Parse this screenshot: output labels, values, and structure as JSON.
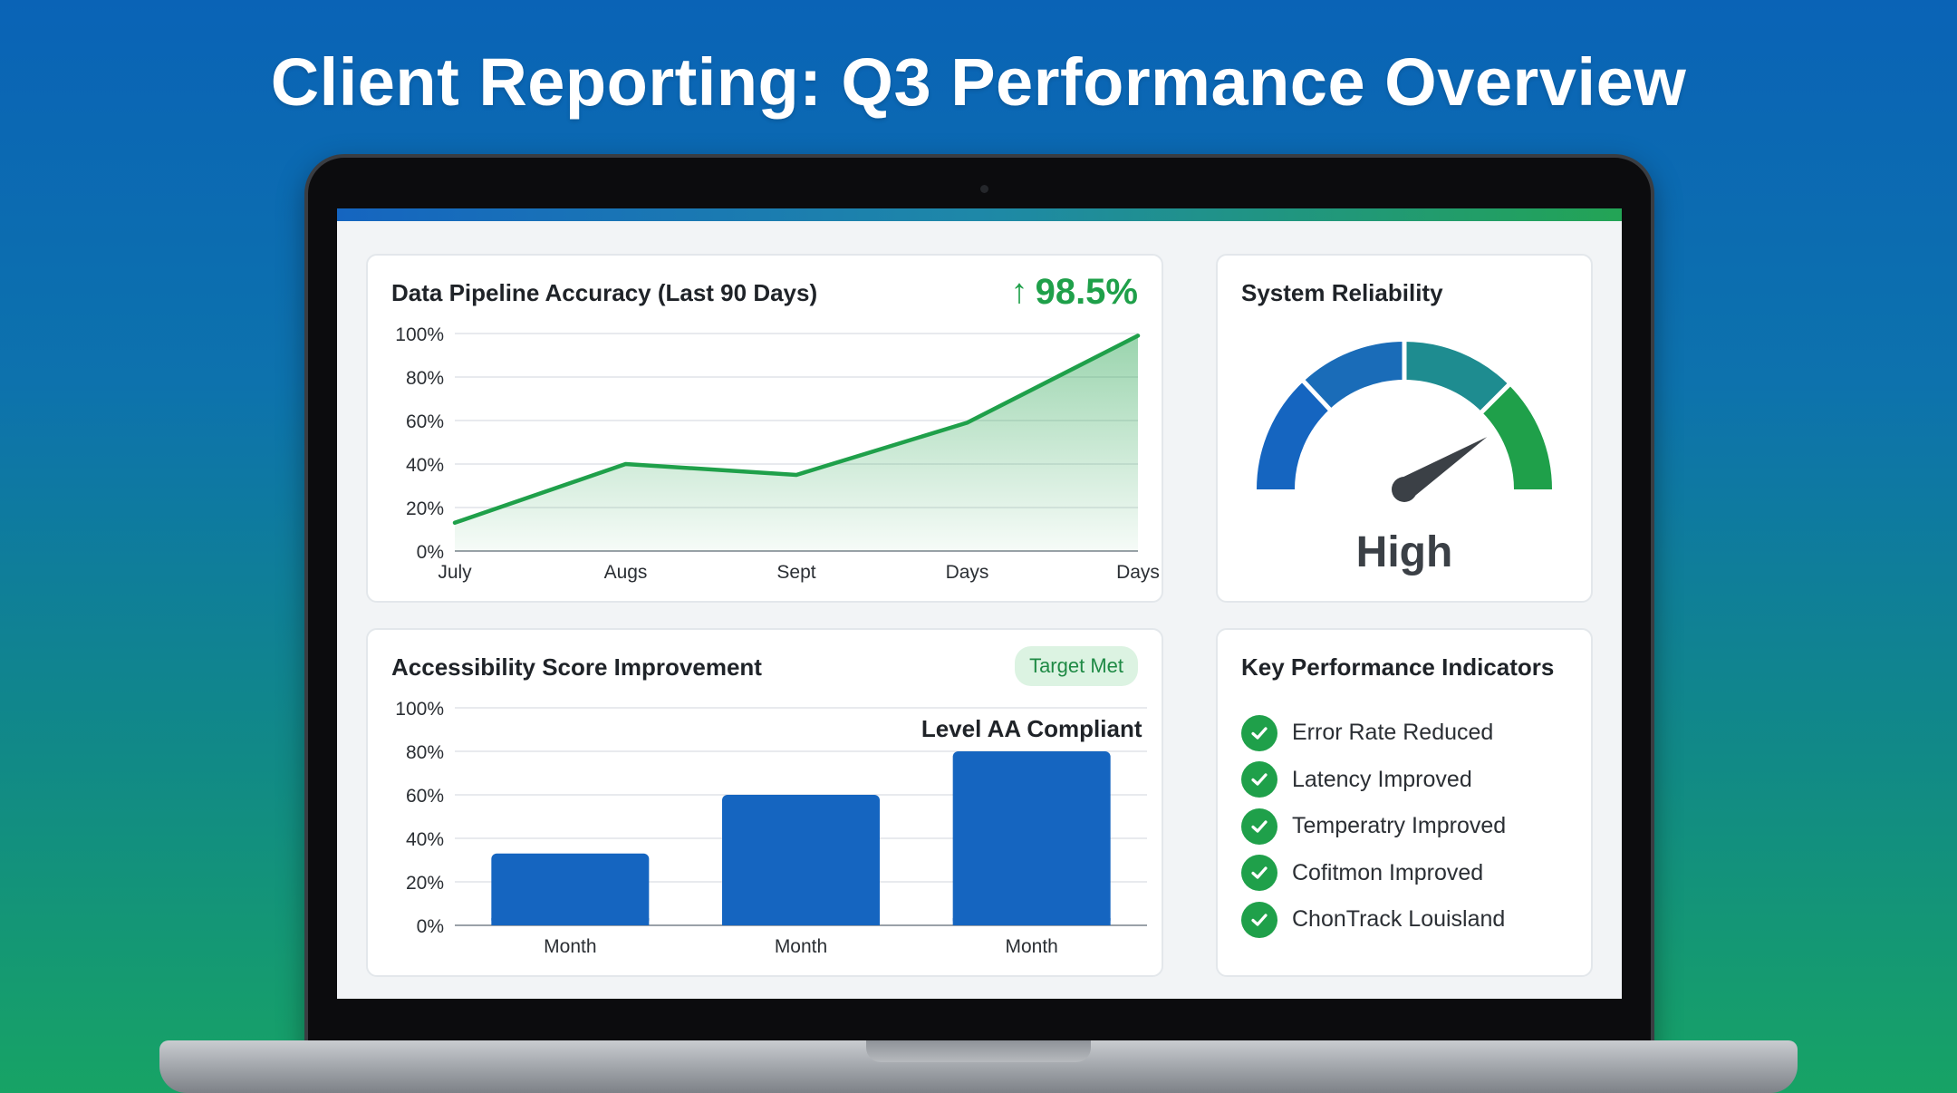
{
  "page": {
    "title": "Client Reporting: Q3 Performance Overview"
  },
  "colors": {
    "accent_blue": "#1565c0",
    "accent_green": "#1fa04a",
    "teal": "#1e8c90",
    "badge_bg": "#dcf3e2"
  },
  "accuracy_card": {
    "title": "Data Pipeline Accuracy (Last 90 Days)",
    "trend_icon": "arrow-up-icon",
    "trend_value": "98.5%"
  },
  "reliability_card": {
    "title": "System Reliability",
    "label": "High",
    "level": 0.82
  },
  "accessibility_card": {
    "title": "Accessibility Score Improvement",
    "badge": "Target Met",
    "annotation": "Level AA Compliant"
  },
  "kpi_card": {
    "title": "Key Performance Indicators",
    "items": [
      {
        "label": "Error Rate Reduced",
        "icon": "check-circle-icon"
      },
      {
        "label": "Latency Improved",
        "icon": "check-circle-icon"
      },
      {
        "label": "Temperatry Improved",
        "icon": "check-circle-icon"
      },
      {
        "label": "Cofitmon Improved",
        "icon": "check-circle-icon"
      },
      {
        "label": "ChonTrack Louisland",
        "icon": "check-circle-icon"
      }
    ]
  },
  "chart_data": [
    {
      "type": "area",
      "title": "Data Pipeline Accuracy (Last 90 Days)",
      "categories": [
        "July",
        "Augs",
        "Sept",
        "Days",
        "Days"
      ],
      "values": [
        13,
        40,
        35,
        59,
        99
      ],
      "ylim": [
        0,
        100
      ],
      "yticks": [
        "0%",
        "20%",
        "40%",
        "60%",
        "80%",
        "100%"
      ],
      "grid": true,
      "color": "#1fa04a"
    },
    {
      "type": "bar",
      "title": "Accessibility Score Improvement",
      "categories": [
        "Month",
        "Month",
        "Month"
      ],
      "values": [
        33,
        60,
        80
      ],
      "ylim": [
        0,
        100
      ],
      "yticks": [
        "0%",
        "20%",
        "40%",
        "60%",
        "80%",
        "100%"
      ],
      "grid": true,
      "color": "#1565c0"
    }
  ]
}
